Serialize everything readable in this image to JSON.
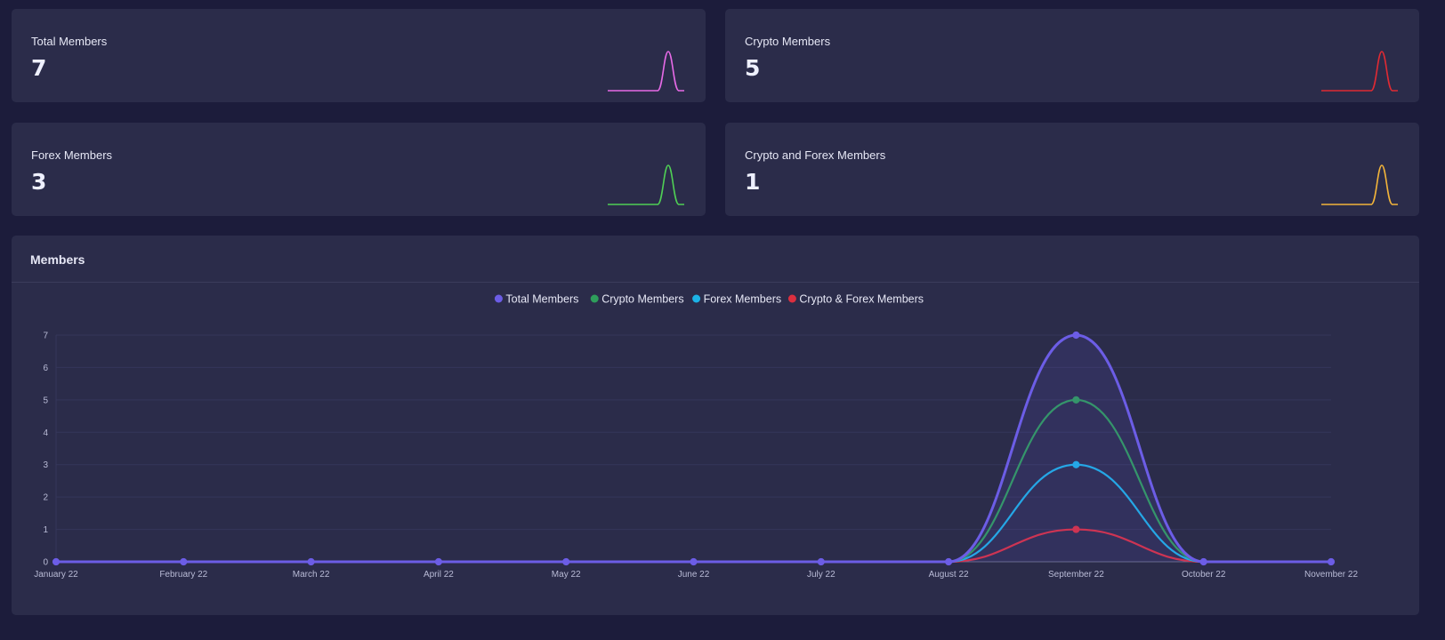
{
  "colors": {
    "page_bg": "#1c1c3b",
    "card_bg": "#2b2c4a",
    "grid": "#35365a",
    "total_members": "#6c5de6",
    "crypto_members": "#2e9e5b",
    "forex_members": "#1cb2e6",
    "crypto_forex_members": "#dc2f3f"
  },
  "stat_cards": [
    {
      "label": "Total Members",
      "value": "7",
      "spark_color": "#e66ae6",
      "spark_icon": "sparkline-icon"
    },
    {
      "label": "Crypto Members",
      "value": "5",
      "spark_color": "#e02a33",
      "spark_icon": "sparkline-icon"
    },
    {
      "label": "Forex Members",
      "value": "3",
      "spark_color": "#4fcf55",
      "spark_icon": "sparkline-icon"
    },
    {
      "label": "Crypto and Forex Members",
      "value": "1",
      "spark_color": "#f2b43a",
      "spark_icon": "sparkline-icon"
    }
  ],
  "members_panel": {
    "title": "Members"
  },
  "chart_data": {
    "type": "line",
    "categories": [
      "January 22",
      "February 22",
      "March 22",
      "April 22",
      "May 22",
      "June 22",
      "July 22",
      "August 22",
      "September 22",
      "October 22",
      "November 22"
    ],
    "y_ticks": [
      "0",
      "1",
      "2",
      "3",
      "4",
      "5",
      "6",
      "7"
    ],
    "ylim": [
      0,
      7
    ],
    "grid": true,
    "legend_position": "top-center",
    "smooth": true,
    "series": [
      {
        "name": "Total Members",
        "color": "#6c5de6",
        "values": [
          0,
          0,
          0,
          0,
          0,
          0,
          0,
          0,
          7,
          0,
          0
        ],
        "fill": true
      },
      {
        "name": "Crypto Members",
        "color": "#2e9e5b",
        "values": [
          0,
          0,
          0,
          0,
          0,
          0,
          0,
          0,
          5,
          0,
          0
        ],
        "fill": false
      },
      {
        "name": "Forex Members",
        "color": "#1cb2e6",
        "values": [
          0,
          0,
          0,
          0,
          0,
          0,
          0,
          0,
          3,
          0,
          0
        ],
        "fill": false
      },
      {
        "name": "Crypto & Forex Members",
        "color": "#dc2f3f",
        "values": [
          0,
          0,
          0,
          0,
          0,
          0,
          0,
          0,
          1,
          0,
          0
        ],
        "fill": false
      }
    ]
  }
}
